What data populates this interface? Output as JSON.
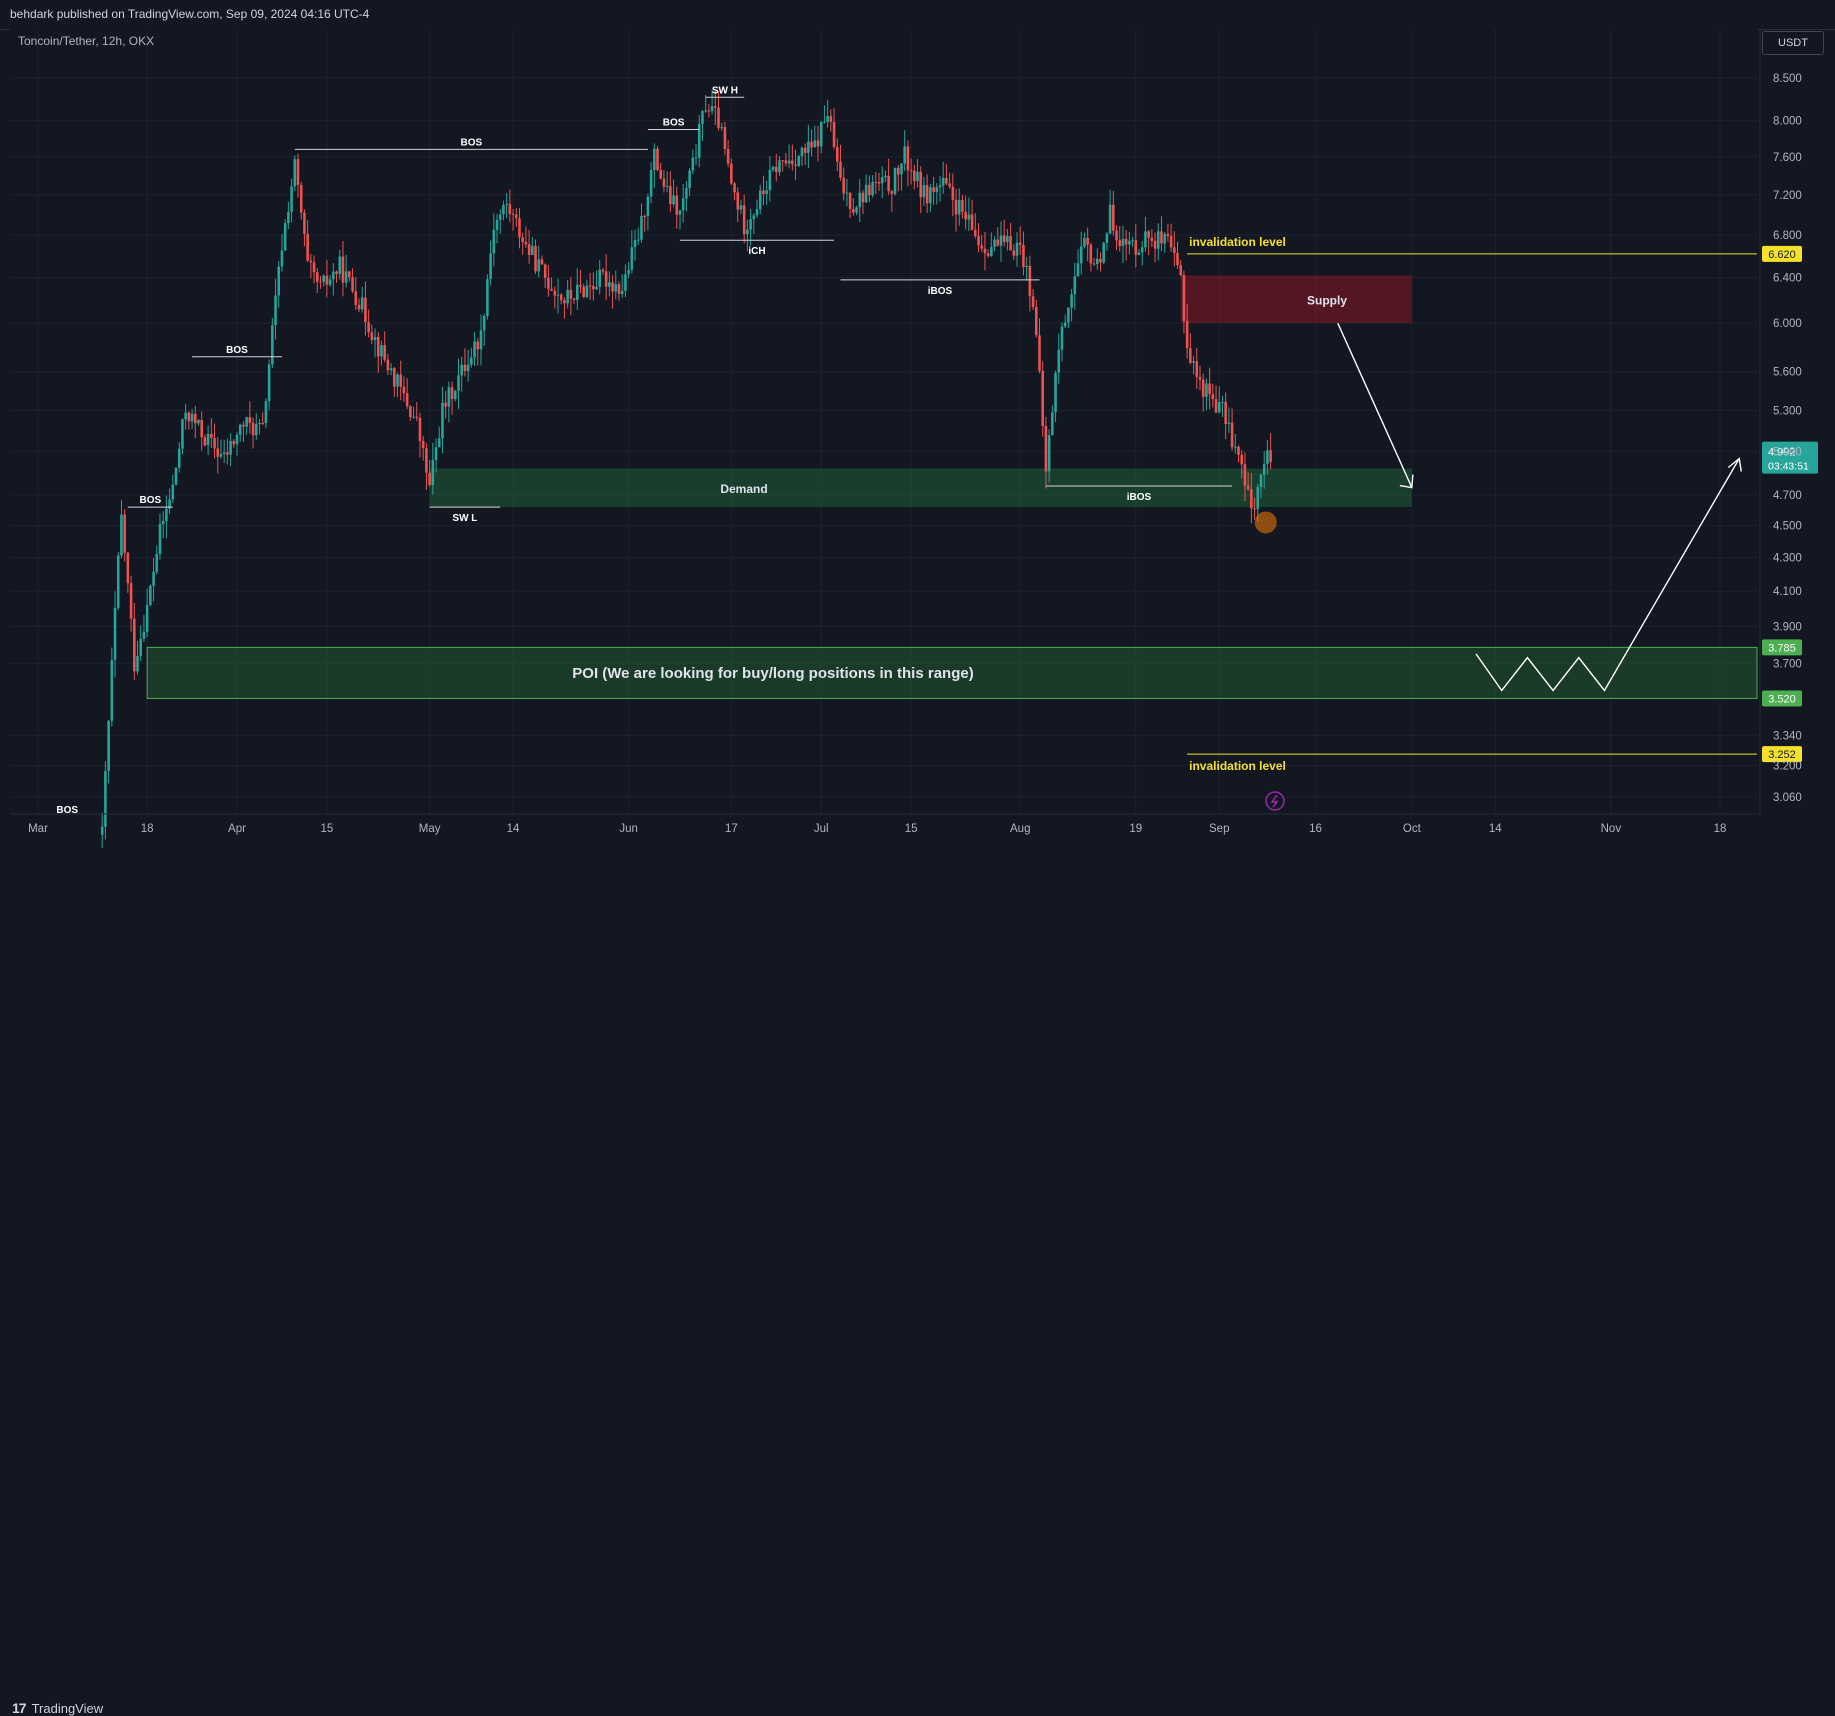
{
  "header": {
    "publisher": "behdark published on TradingView.com, Sep 09, 2024 04:16 UTC-4"
  },
  "currency": "USDT",
  "footer": {
    "brand": "TradingView",
    "brand_mark": "17"
  },
  "chart_data": {
    "type": "candlestick",
    "title": "Toncoin/Tether, 12h, OKX",
    "y_ticks": [
      "8.500",
      "8.000",
      "7.600",
      "7.200",
      "6.800",
      "6.400",
      "6.000",
      "5.600",
      "5.300",
      "5.000",
      "4.700",
      "4.500",
      "4.300",
      "4.100",
      "3.900",
      "3.700",
      "3.340",
      "3.200",
      "3.060"
    ],
    "y_tick_values": [
      8.5,
      8.0,
      7.6,
      7.2,
      6.8,
      6.4,
      6.0,
      5.6,
      5.3,
      5.0,
      4.7,
      4.5,
      4.3,
      4.1,
      3.9,
      3.7,
      3.34,
      3.2,
      3.06
    ],
    "x_ticks": [
      {
        "label": "Mar",
        "date": "2024-03-01"
      },
      {
        "label": "18",
        "date": "2024-03-18"
      },
      {
        "label": "Apr",
        "date": "2024-04-01"
      },
      {
        "label": "15",
        "date": "2024-04-15"
      },
      {
        "label": "May",
        "date": "2024-05-01"
      },
      {
        "label": "14",
        "date": "2024-05-14"
      },
      {
        "label": "Jun",
        "date": "2024-06-01"
      },
      {
        "label": "17",
        "date": "2024-06-17"
      },
      {
        "label": "Jul",
        "date": "2024-07-01"
      },
      {
        "label": "15",
        "date": "2024-07-15"
      },
      {
        "label": "Aug",
        "date": "2024-08-01"
      },
      {
        "label": "19",
        "date": "2024-08-19"
      },
      {
        "label": "Sep",
        "date": "2024-09-01"
      },
      {
        "label": "16",
        "date": "2024-09-16"
      },
      {
        "label": "Oct",
        "date": "2024-10-01"
      },
      {
        "label": "14",
        "date": "2024-10-14"
      },
      {
        "label": "Nov",
        "date": "2024-11-01"
      },
      {
        "label": "18",
        "date": "2024-11-18"
      }
    ],
    "price_path": [
      [
        "2024-03-11",
        2.9
      ],
      [
        "2024-03-12",
        3.4
      ],
      [
        "2024-03-14",
        4.55
      ],
      [
        "2024-03-16",
        3.7
      ],
      [
        "2024-03-18",
        4.0
      ],
      [
        "2024-03-20",
        4.45
      ],
      [
        "2024-03-22",
        4.75
      ],
      [
        "2024-03-24",
        5.3
      ],
      [
        "2024-03-27",
        5.1
      ],
      [
        "2024-03-30",
        4.95
      ],
      [
        "2024-04-02",
        5.2
      ],
      [
        "2024-04-05",
        5.15
      ],
      [
        "2024-04-08",
        6.7
      ],
      [
        "2024-04-10",
        7.5
      ],
      [
        "2024-04-12",
        6.5
      ],
      [
        "2024-04-14",
        6.3
      ],
      [
        "2024-04-17",
        6.5
      ],
      [
        "2024-04-20",
        6.2
      ],
      [
        "2024-04-23",
        5.8
      ],
      [
        "2024-04-26",
        5.5
      ],
      [
        "2024-04-29",
        5.2
      ],
      [
        "2024-05-01",
        4.75
      ],
      [
        "2024-05-03",
        5.3
      ],
      [
        "2024-05-06",
        5.6
      ],
      [
        "2024-05-09",
        5.9
      ],
      [
        "2024-05-11",
        6.9
      ],
      [
        "2024-05-13",
        7.1
      ],
      [
        "2024-05-16",
        6.7
      ],
      [
        "2024-05-19",
        6.4
      ],
      [
        "2024-05-22",
        6.2
      ],
      [
        "2024-05-25",
        6.3
      ],
      [
        "2024-05-28",
        6.4
      ],
      [
        "2024-05-31",
        6.3
      ],
      [
        "2024-06-03",
        6.9
      ],
      [
        "2024-06-05",
        7.6
      ],
      [
        "2024-06-07",
        7.2
      ],
      [
        "2024-06-09",
        7.0
      ],
      [
        "2024-06-11",
        7.5
      ],
      [
        "2024-06-13",
        8.2
      ],
      [
        "2024-06-15",
        8.0
      ],
      [
        "2024-06-17",
        7.3
      ],
      [
        "2024-06-19",
        6.9
      ],
      [
        "2024-06-21",
        7.1
      ],
      [
        "2024-06-24",
        7.5
      ],
      [
        "2024-06-27",
        7.6
      ],
      [
        "2024-06-30",
        7.7
      ],
      [
        "2024-07-02",
        8.1
      ],
      [
        "2024-07-04",
        7.3
      ],
      [
        "2024-07-06",
        7.1
      ],
      [
        "2024-07-09",
        7.3
      ],
      [
        "2024-07-12",
        7.3
      ],
      [
        "2024-07-14",
        7.6
      ],
      [
        "2024-07-17",
        7.2
      ],
      [
        "2024-07-20",
        7.3
      ],
      [
        "2024-07-23",
        7.0
      ],
      [
        "2024-07-26",
        6.7
      ],
      [
        "2024-07-29",
        6.7
      ],
      [
        "2024-08-01",
        6.7
      ],
      [
        "2024-08-03",
        6.2
      ],
      [
        "2024-08-05",
        4.85
      ],
      [
        "2024-08-07",
        5.8
      ],
      [
        "2024-08-09",
        6.3
      ],
      [
        "2024-08-11",
        6.7
      ],
      [
        "2024-08-13",
        6.5
      ],
      [
        "2024-08-15",
        7.0
      ],
      [
        "2024-08-17",
        6.7
      ],
      [
        "2024-08-19",
        6.7
      ],
      [
        "2024-08-21",
        6.8
      ],
      [
        "2024-08-24",
        6.7
      ],
      [
        "2024-08-26",
        6.4
      ],
      [
        "2024-08-27",
        5.8
      ],
      [
        "2024-08-29",
        5.5
      ],
      [
        "2024-08-31",
        5.4
      ],
      [
        "2024-09-02",
        5.25
      ],
      [
        "2024-09-04",
        4.95
      ],
      [
        "2024-09-06",
        4.6
      ],
      [
        "2024-09-07",
        4.75
      ],
      [
        "2024-09-08",
        4.9
      ],
      [
        "2024-09-09",
        4.992
      ]
    ],
    "zones": [
      {
        "name": "Supply",
        "label": "Supply",
        "from": "2024-08-26",
        "to": "2024-10-01",
        "top": 6.42,
        "bottom": 6.0
      },
      {
        "name": "Demand",
        "label": "Demand",
        "from": "2024-05-01",
        "to": "2024-10-01",
        "top": 4.88,
        "bottom": 4.62
      },
      {
        "name": "POI",
        "label": "POI (We are looking for buy/long positions in this range)",
        "from": "2024-03-18",
        "to": "2024-11-28",
        "top": 3.785,
        "bottom": 3.52
      }
    ],
    "structure_lines": [
      {
        "label": "BOS",
        "from": "2024-03-15",
        "to": "2024-03-22",
        "price": 4.62,
        "label_pos": "above"
      },
      {
        "label": "BOS",
        "from": "2024-03-25",
        "to": "2024-04-08",
        "price": 5.72,
        "label_pos": "above"
      },
      {
        "label": "BOS",
        "from": "2024-04-10",
        "to": "2024-06-04",
        "price": 7.68,
        "label_pos": "above"
      },
      {
        "label": "BOS",
        "from": "2024-06-04",
        "to": "2024-06-12",
        "price": 7.9,
        "label_pos": "above"
      },
      {
        "label": "SW H",
        "from": "2024-06-13",
        "to": "2024-06-19",
        "price": 8.27,
        "label_pos": "above"
      },
      {
        "label": "iCH",
        "from": "2024-06-09",
        "to": "2024-07-03",
        "price": 6.75,
        "label_pos": "below"
      },
      {
        "label": "iBOS",
        "from": "2024-07-04",
        "to": "2024-08-04",
        "price": 6.38,
        "label_pos": "below"
      },
      {
        "label": "SW L",
        "from": "2024-05-01",
        "to": "2024-05-12",
        "price": 4.62,
        "label_pos": "below"
      },
      {
        "label": "iBOS",
        "from": "2024-08-05",
        "to": "2024-09-03",
        "price": 4.76,
        "label_pos": "below"
      }
    ],
    "bottom_bos": {
      "label": "BOS",
      "date": "2024-03-04"
    },
    "invalidation_levels": [
      {
        "label": "invalidation level",
        "price": 6.62,
        "badge": "6.620",
        "from": "2024-08-27",
        "label_pos": "above"
      },
      {
        "label": "invalidation level",
        "price": 3.252,
        "badge": "3.252",
        "from": "2024-08-27",
        "label_pos": "below"
      }
    ],
    "poi_badges": [
      {
        "text": "3.785",
        "price": 3.785
      },
      {
        "text": "3.520",
        "price": 3.52
      }
    ],
    "current_price": {
      "value": "4.992",
      "countdown": "03:43:51",
      "price": 4.992
    },
    "projection_path": [
      [
        "2024-09-07",
        6.0,
        "arrow"
      ],
      [
        "2024-10-01",
        4.75,
        "arrowhead"
      ]
    ],
    "zigzag": [
      [
        "2024-10-11",
        3.75
      ],
      [
        "2024-10-15",
        3.56
      ],
      [
        "2024-10-19",
        3.73
      ],
      [
        "2024-10-23",
        3.56
      ],
      [
        "2024-10-27",
        3.73
      ],
      [
        "2024-10-31",
        3.56
      ],
      [
        "2024-11-21",
        4.95
      ]
    ],
    "highlight_circle": {
      "date": "2024-09-07",
      "price": 4.52
    }
  }
}
